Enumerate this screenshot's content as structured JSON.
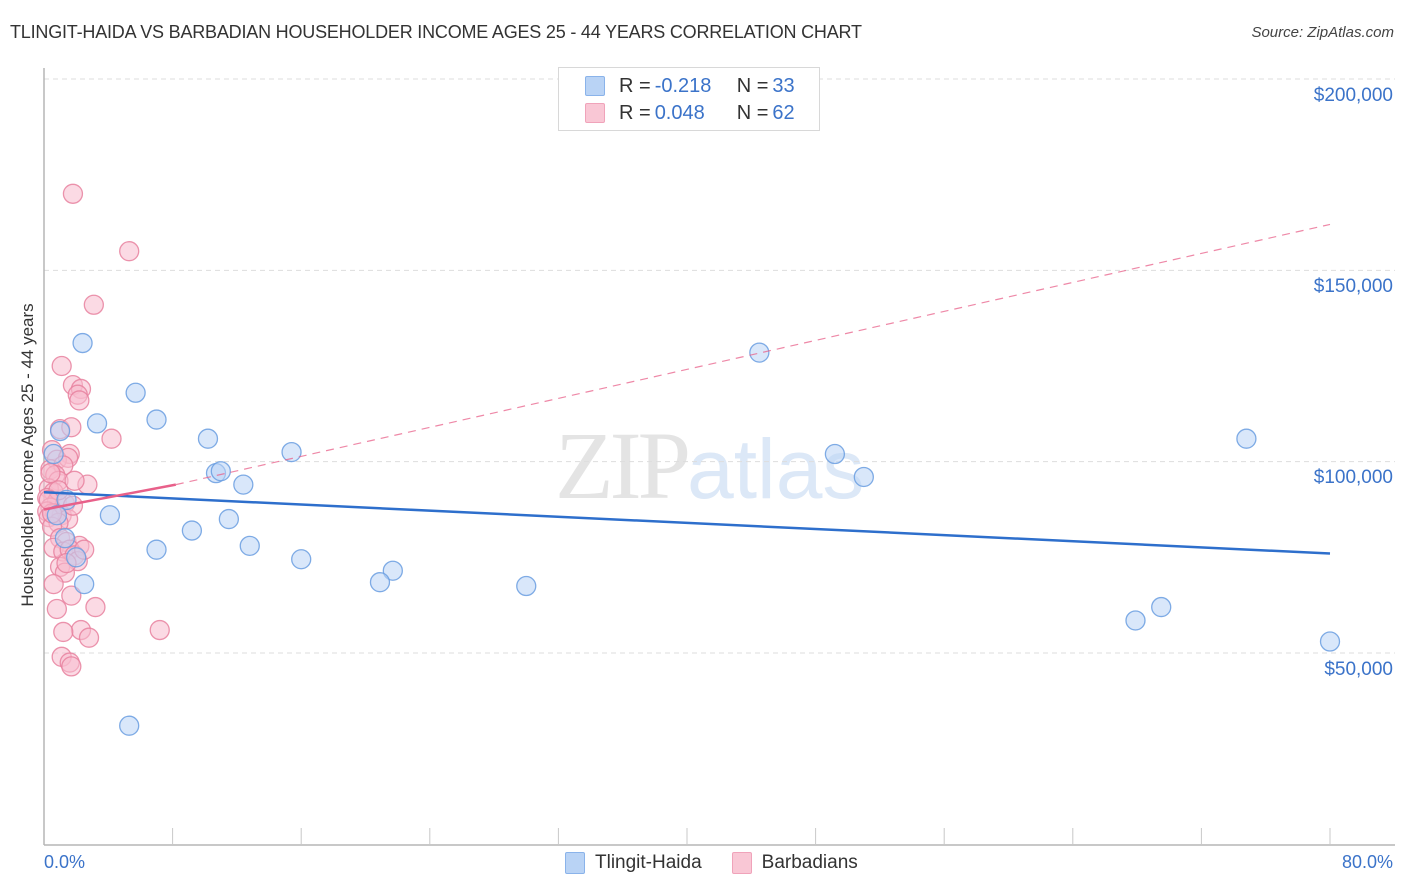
{
  "header": {
    "title": "TLINGIT-HAIDA VS BARBADIAN HOUSEHOLDER INCOME AGES 25 - 44 YEARS CORRELATION CHART",
    "source": "Source: ZipAtlas.com"
  },
  "axes": {
    "ylabel": "Householder Income Ages 25 - 44 years",
    "yticks": [
      "$200,000",
      "$150,000",
      "$100,000",
      "$50,000"
    ],
    "xtick_left": "0.0%",
    "xtick_right": "80.0%"
  },
  "legend": {
    "series": [
      {
        "r_label": "R = ",
        "r_value": "-0.218",
        "n_label": "N = ",
        "n_value": "33"
      },
      {
        "r_label": "R = ",
        "r_value": "0.048",
        "n_label": "N = ",
        "n_value": "62"
      }
    ],
    "bottom": [
      "Tlingit-Haida",
      "Barbadians"
    ]
  },
  "watermark": {
    "zip": "ZIP",
    "atlas": "atlas"
  },
  "colors": {
    "blue_fill": "#b9d3f5",
    "blue_stroke": "#6a9ee0",
    "blue_line": "#2e6fcc",
    "pink_fill": "#f7bccd",
    "pink_stroke": "#e8819f",
    "pink_line": "#e8608a",
    "axis_text": "#3b73c9"
  },
  "chart_data": {
    "type": "scatter",
    "title": "TLINGIT-HAIDA VS BARBADIAN HOUSEHOLDER INCOME AGES 25 - 44 YEARS CORRELATION CHART",
    "xlabel": "",
    "ylabel": "Householder Income Ages 25 - 44 years",
    "xlim": [
      0,
      80
    ],
    "ylim": [
      5000,
      210000
    ],
    "x_unit": "%",
    "grid": true,
    "legend_position": "top-center",
    "series": [
      {
        "name": "Tlingit-Haida",
        "R": -0.218,
        "N": 33,
        "trend": {
          "x": [
            0,
            80
          ],
          "y": [
            92000,
            76000
          ],
          "style": "solid"
        },
        "points": [
          [
            2.4,
            131000
          ],
          [
            5.7,
            118000
          ],
          [
            7.0,
            111000
          ],
          [
            3.3,
            110000
          ],
          [
            1.0,
            108000
          ],
          [
            10.2,
            106000
          ],
          [
            15.4,
            102500
          ],
          [
            0.6,
            102000
          ],
          [
            10.7,
            97000
          ],
          [
            11.0,
            97500
          ],
          [
            12.4,
            94000
          ],
          [
            4.1,
            86000
          ],
          [
            11.5,
            85000
          ],
          [
            9.2,
            82000
          ],
          [
            1.3,
            80000
          ],
          [
            7.0,
            77000
          ],
          [
            12.8,
            78000
          ],
          [
            16.0,
            74500
          ],
          [
            21.7,
            71500
          ],
          [
            20.9,
            68500
          ],
          [
            2.5,
            68000
          ],
          [
            30.0,
            67500
          ],
          [
            44.5,
            128500
          ],
          [
            49.2,
            102000
          ],
          [
            51.0,
            96000
          ],
          [
            67.9,
            58500
          ],
          [
            69.5,
            62000
          ],
          [
            74.8,
            106000
          ],
          [
            80.0,
            53000
          ],
          [
            5.3,
            31000
          ],
          [
            1.4,
            90000
          ],
          [
            0.8,
            86000
          ],
          [
            2.0,
            75000
          ]
        ]
      },
      {
        "name": "Barbadians",
        "R": 0.048,
        "N": 62,
        "trend_solid": {
          "x": [
            0,
            8.2
          ],
          "y": [
            87500,
            94000
          ],
          "style": "solid"
        },
        "trend_dashed": {
          "x": [
            8.2,
            80
          ],
          "y": [
            94000,
            162000
          ],
          "style": "dashed"
        },
        "points": [
          [
            1.8,
            170000
          ],
          [
            5.3,
            155000
          ],
          [
            3.1,
            141000
          ],
          [
            1.1,
            125000
          ],
          [
            1.8,
            120000
          ],
          [
            2.3,
            119000
          ],
          [
            2.1,
            117500
          ],
          [
            2.2,
            116000
          ],
          [
            1.0,
            108500
          ],
          [
            1.7,
            109000
          ],
          [
            4.2,
            106000
          ],
          [
            0.5,
            103000
          ],
          [
            1.6,
            102000
          ],
          [
            0.8,
            100500
          ],
          [
            1.5,
            101000
          ],
          [
            0.4,
            98000
          ],
          [
            1.2,
            99000
          ],
          [
            0.7,
            96500
          ],
          [
            0.9,
            95000
          ],
          [
            2.7,
            94000
          ],
          [
            0.3,
            93000
          ],
          [
            0.6,
            92000
          ],
          [
            0.2,
            90500
          ],
          [
            0.8,
            89500
          ],
          [
            1.3,
            89000
          ],
          [
            0.4,
            88000
          ],
          [
            0.2,
            87000
          ],
          [
            0.7,
            86500
          ],
          [
            1.1,
            86000
          ],
          [
            0.3,
            85500
          ],
          [
            1.5,
            85000
          ],
          [
            0.9,
            84000
          ],
          [
            0.5,
            83000
          ],
          [
            1.0,
            80000
          ],
          [
            1.4,
            79000
          ],
          [
            2.2,
            78000
          ],
          [
            0.6,
            77500
          ],
          [
            1.2,
            76500
          ],
          [
            1.6,
            77000
          ],
          [
            1.9,
            75500
          ],
          [
            2.1,
            74000
          ],
          [
            1.0,
            72500
          ],
          [
            1.3,
            71000
          ],
          [
            0.6,
            68000
          ],
          [
            3.2,
            62000
          ],
          [
            0.8,
            61500
          ],
          [
            1.7,
            65000
          ],
          [
            2.3,
            56000
          ],
          [
            1.2,
            55500
          ],
          [
            2.8,
            54000
          ],
          [
            7.2,
            56000
          ],
          [
            1.1,
            49000
          ],
          [
            1.6,
            47500
          ],
          [
            1.7,
            46500
          ],
          [
            0.4,
            97000
          ],
          [
            0.9,
            92500
          ],
          [
            1.8,
            88500
          ],
          [
            2.5,
            77000
          ],
          [
            1.4,
            73500
          ],
          [
            0.5,
            86500
          ],
          [
            0.3,
            90000
          ],
          [
            1.9,
            95000
          ]
        ]
      }
    ]
  }
}
